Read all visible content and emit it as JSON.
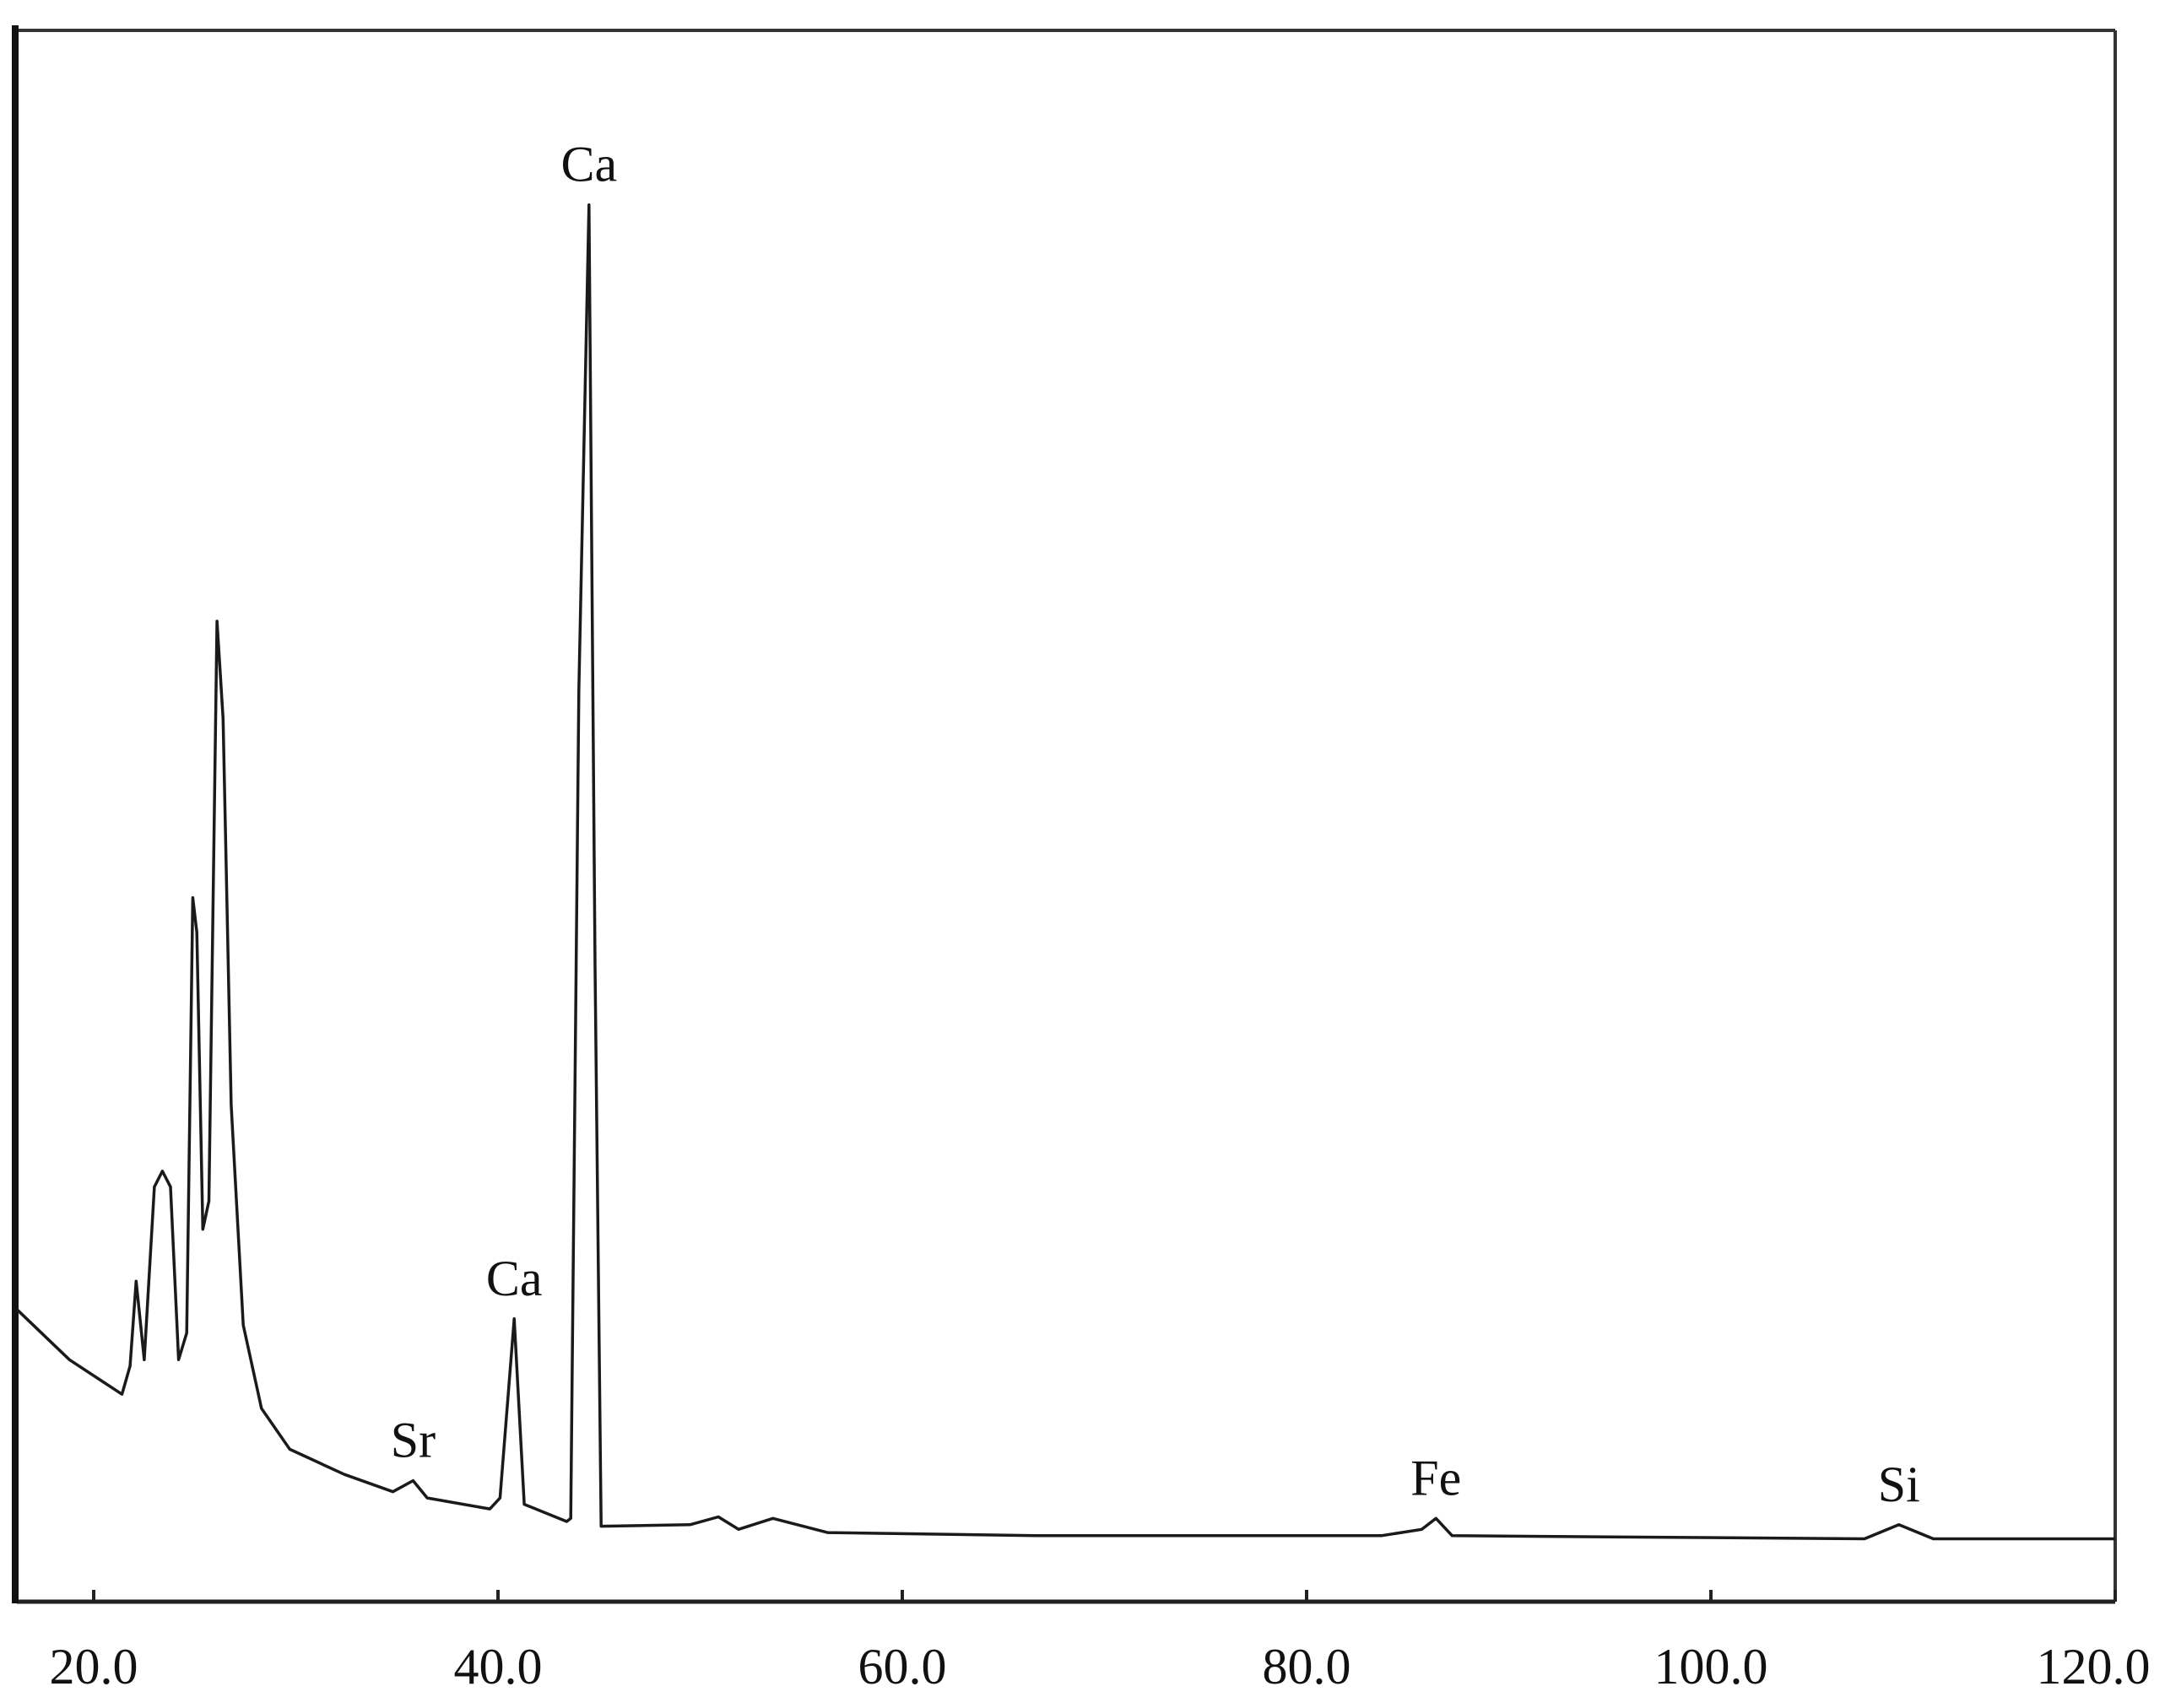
{
  "chart_data": {
    "type": "line",
    "x": [
      16.2,
      18.8,
      21.4,
      21.8,
      22.1,
      22.5,
      23.0,
      23.4,
      23.8,
      24.2,
      24.6,
      24.9,
      25.1,
      25.4,
      25.7,
      26.1,
      26.4,
      26.8,
      27.4,
      28.3,
      29.7,
      32.4,
      34.8,
      35.8,
      36.5,
      39.6,
      40.1,
      40.8,
      41.3,
      43.4,
      43.6,
      44.0,
      44.5,
      44.8,
      45.1,
      49.5,
      50.9,
      51.9,
      53.6,
      56.3,
      66.6,
      83.7,
      85.7,
      86.4,
      87.2,
      107.6,
      109.3,
      111.0,
      120.0
    ],
    "series": [
      {
        "color": "#1a1a1a",
        "values": [
          18.6,
          15.4,
          13.2,
          15.0,
          20.4,
          15.4,
          26.4,
          27.4,
          26.4,
          15.4,
          17.1,
          44.8,
          42.6,
          23.7,
          25.5,
          62.4,
          56.2,
          31.6,
          17.6,
          12.3,
          9.7,
          8.1,
          7.0,
          7.7,
          6.6,
          5.9,
          6.6,
          18.0,
          6.2,
          5.1,
          5.3,
          58.0,
          88.9,
          40.4,
          4.8,
          4.9,
          5.4,
          4.6,
          5.3,
          4.4,
          4.2,
          4.2,
          4.6,
          5.3,
          4.2,
          4.0,
          4.9,
          4.0,
          4.0
        ]
      }
    ],
    "xlim": [
      16.2,
      120.0
    ],
    "ylim": [
      0,
      100
    ],
    "xticks": [
      {
        "value": 20,
        "label": "20.0"
      },
      {
        "value": 40,
        "label": "40.0"
      },
      {
        "value": 60,
        "label": "60.0"
      },
      {
        "value": 80,
        "label": "80.0"
      },
      {
        "value": 100,
        "label": "100.0"
      },
      {
        "value": 120,
        "label": "120.0"
      }
    ],
    "annotations": [
      {
        "text": "Sr",
        "x": 35.8
      },
      {
        "text": "Ca",
        "x": 40.8
      },
      {
        "text": "Ca",
        "x": 44.5
      },
      {
        "text": "Fe",
        "x": 86.4
      },
      {
        "text": "Si",
        "x": 109.3
      }
    ]
  }
}
